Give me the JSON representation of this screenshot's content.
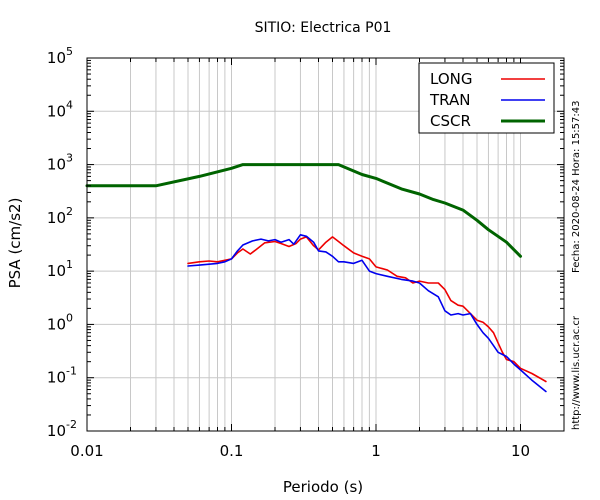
{
  "chart_data": {
    "type": "line",
    "title": "SITIO: Electrica P01",
    "xlabel": "Periodo (s)",
    "ylabel": "PSA (cm/s2)",
    "x_scale": "log",
    "y_scale": "log",
    "xlim": [
      0.01,
      20
    ],
    "ylim": [
      0.01,
      100000
    ],
    "x_ticks": [
      {
        "value": 0.01,
        "label": "0.01"
      },
      {
        "value": 0.1,
        "label": "0.1"
      },
      {
        "value": 1,
        "label": "1"
      },
      {
        "value": 10,
        "label": "10"
      }
    ],
    "y_ticks": [
      {
        "value": 0.01,
        "base": "10",
        "exp": "-2"
      },
      {
        "value": 0.1,
        "base": "10",
        "exp": "-1"
      },
      {
        "value": 1,
        "base": "10",
        "exp": "0"
      },
      {
        "value": 10,
        "base": "10",
        "exp": "1"
      },
      {
        "value": 100,
        "base": "10",
        "exp": "2"
      },
      {
        "value": 1000,
        "base": "10",
        "exp": "3"
      },
      {
        "value": 10000,
        "base": "10",
        "exp": "4"
      },
      {
        "value": 100000,
        "base": "10",
        "exp": "5"
      }
    ],
    "grid": true,
    "legend_position": "top-right",
    "series": [
      {
        "name": "LONG",
        "color": "#ee0000",
        "points": [
          [
            0.05,
            14
          ],
          [
            0.06,
            15
          ],
          [
            0.07,
            15.5
          ],
          [
            0.08,
            15
          ],
          [
            0.09,
            16
          ],
          [
            0.1,
            17
          ],
          [
            0.11,
            22
          ],
          [
            0.12,
            26
          ],
          [
            0.135,
            21
          ],
          [
            0.15,
            26
          ],
          [
            0.17,
            34
          ],
          [
            0.2,
            36
          ],
          [
            0.22,
            33
          ],
          [
            0.25,
            29
          ],
          [
            0.28,
            33
          ],
          [
            0.3,
            40
          ],
          [
            0.33,
            44
          ],
          [
            0.37,
            30
          ],
          [
            0.4,
            25
          ],
          [
            0.45,
            35
          ],
          [
            0.5,
            44
          ],
          [
            0.55,
            36
          ],
          [
            0.6,
            30
          ],
          [
            0.7,
            22
          ],
          [
            0.8,
            19
          ],
          [
            0.9,
            17
          ],
          [
            1.0,
            12
          ],
          [
            1.2,
            10.5
          ],
          [
            1.4,
            8
          ],
          [
            1.6,
            7.5
          ],
          [
            1.8,
            6
          ],
          [
            2.0,
            6.5
          ],
          [
            2.3,
            6
          ],
          [
            2.7,
            6
          ],
          [
            3.0,
            4.5
          ],
          [
            3.3,
            2.8
          ],
          [
            3.7,
            2.3
          ],
          [
            4.0,
            2.2
          ],
          [
            4.5,
            1.6
          ],
          [
            5.0,
            1.2
          ],
          [
            5.5,
            1.1
          ],
          [
            6.0,
            0.9
          ],
          [
            6.5,
            0.7
          ],
          [
            7.0,
            0.45
          ],
          [
            7.5,
            0.3
          ],
          [
            8.0,
            0.22
          ],
          [
            9.0,
            0.2
          ],
          [
            10.0,
            0.15
          ],
          [
            12.0,
            0.12
          ],
          [
            15.0,
            0.085
          ]
        ]
      },
      {
        "name": "TRAN",
        "color": "#0000ee",
        "points": [
          [
            0.05,
            12.5
          ],
          [
            0.06,
            13
          ],
          [
            0.07,
            13.5
          ],
          [
            0.08,
            14
          ],
          [
            0.09,
            15
          ],
          [
            0.1,
            17
          ],
          [
            0.11,
            24
          ],
          [
            0.12,
            31
          ],
          [
            0.14,
            37
          ],
          [
            0.16,
            40
          ],
          [
            0.18,
            37
          ],
          [
            0.2,
            39
          ],
          [
            0.22,
            35
          ],
          [
            0.25,
            39
          ],
          [
            0.27,
            32
          ],
          [
            0.3,
            48
          ],
          [
            0.33,
            45
          ],
          [
            0.37,
            35
          ],
          [
            0.4,
            24
          ],
          [
            0.45,
            23
          ],
          [
            0.5,
            19
          ],
          [
            0.55,
            15
          ],
          [
            0.6,
            15
          ],
          [
            0.7,
            14
          ],
          [
            0.8,
            16
          ],
          [
            0.9,
            10
          ],
          [
            1.0,
            9
          ],
          [
            1.2,
            8
          ],
          [
            1.5,
            7
          ],
          [
            1.8,
            6.5
          ],
          [
            2.0,
            6
          ],
          [
            2.3,
            4.3
          ],
          [
            2.7,
            3.3
          ],
          [
            3.0,
            1.8
          ],
          [
            3.3,
            1.5
          ],
          [
            3.7,
            1.6
          ],
          [
            4.0,
            1.5
          ],
          [
            4.5,
            1.6
          ],
          [
            5.0,
            1.0
          ],
          [
            5.5,
            0.7
          ],
          [
            6.0,
            0.55
          ],
          [
            6.5,
            0.4
          ],
          [
            7.0,
            0.3
          ],
          [
            8.0,
            0.25
          ],
          [
            9.0,
            0.18
          ],
          [
            10.0,
            0.14
          ],
          [
            12.0,
            0.09
          ],
          [
            15.0,
            0.055
          ]
        ]
      },
      {
        "name": "CSCR",
        "color": "#006400",
        "points": [
          [
            0.01,
            400
          ],
          [
            0.03,
            400
          ],
          [
            0.06,
            600
          ],
          [
            0.1,
            850
          ],
          [
            0.12,
            1000
          ],
          [
            0.55,
            1000
          ],
          [
            0.8,
            650
          ],
          [
            1.0,
            550
          ],
          [
            1.5,
            350
          ],
          [
            2.0,
            280
          ],
          [
            2.5,
            220
          ],
          [
            3.0,
            190
          ],
          [
            4.0,
            140
          ],
          [
            5.0,
            90
          ],
          [
            6.0,
            60
          ],
          [
            8.0,
            35
          ],
          [
            10.0,
            19
          ]
        ]
      }
    ]
  },
  "side_labels": {
    "date": "Fecha: 2020-08-24 Hora: 15:57:43",
    "url": "http://www.lis.ucr.ac.cr"
  }
}
